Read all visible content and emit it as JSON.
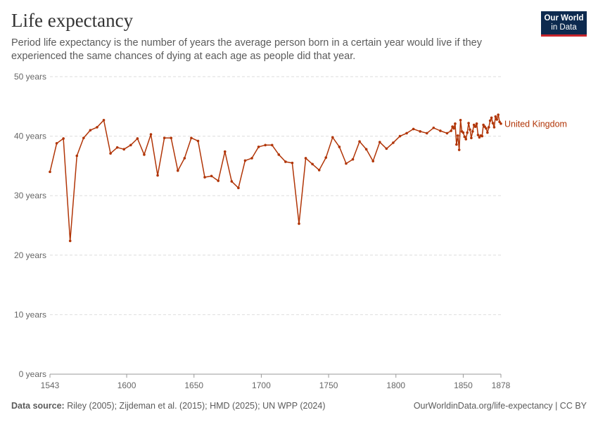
{
  "title": "Life expectancy",
  "subtitle": "Period life expectancy is the number of years the average person born in a certain year would live if they experienced the same chances of dying at each age as people did that year.",
  "logo": {
    "line1": "Our World",
    "line2": "in Data"
  },
  "footer": {
    "source_label": "Data source:",
    "source_text": "Riley (2005); Zijdeman et al. (2015); HMD (2025); UN WPP (2024)",
    "license": "OurWorldinData.org/life-expectancy | CC BY"
  },
  "colors": {
    "series": "#b13507",
    "grid": "#dddddd",
    "axis": "#999999"
  },
  "chart_data": {
    "type": "line",
    "title": "Life expectancy",
    "xlabel": "",
    "ylabel": "",
    "xlim": [
      1543,
      1878
    ],
    "ylim": [
      0,
      50
    ],
    "y_ticks": [
      {
        "value": 0,
        "label": "0 years"
      },
      {
        "value": 10,
        "label": "10 years"
      },
      {
        "value": 20,
        "label": "20 years"
      },
      {
        "value": 30,
        "label": "30 years"
      },
      {
        "value": 40,
        "label": "40 years"
      },
      {
        "value": 50,
        "label": "50 years"
      }
    ],
    "x_ticks": [
      {
        "value": 1543,
        "label": "1543"
      },
      {
        "value": 1600,
        "label": "1600"
      },
      {
        "value": 1650,
        "label": "1650"
      },
      {
        "value": 1700,
        "label": "1700"
      },
      {
        "value": 1750,
        "label": "1750"
      },
      {
        "value": 1800,
        "label": "1800"
      },
      {
        "value": 1850,
        "label": "1850"
      },
      {
        "value": 1878,
        "label": "1878"
      }
    ],
    "grid": true,
    "series": [
      {
        "name": "United Kingdom",
        "x": [
          1543,
          1548,
          1553,
          1558,
          1563,
          1568,
          1573,
          1578,
          1583,
          1588,
          1593,
          1598,
          1603,
          1608,
          1613,
          1618,
          1623,
          1628,
          1633,
          1638,
          1643,
          1648,
          1653,
          1658,
          1663,
          1668,
          1673,
          1678,
          1683,
          1688,
          1693,
          1698,
          1703,
          1708,
          1713,
          1718,
          1723,
          1728,
          1733,
          1738,
          1743,
          1748,
          1753,
          1758,
          1763,
          1768,
          1773,
          1778,
          1783,
          1788,
          1793,
          1798,
          1803,
          1808,
          1813,
          1818,
          1823,
          1828,
          1833,
          1838,
          1841,
          1842,
          1843,
          1844,
          1845,
          1846,
          1847,
          1848,
          1849,
          1850,
          1851,
          1852,
          1853,
          1854,
          1855,
          1856,
          1857,
          1858,
          1859,
          1860,
          1861,
          1862,
          1863,
          1864,
          1865,
          1866,
          1867,
          1868,
          1869,
          1870,
          1871,
          1872,
          1873,
          1874,
          1875,
          1876,
          1877,
          1878
        ],
        "values": [
          34.0,
          38.8,
          39.6,
          22.4,
          36.7,
          39.7,
          41.0,
          41.5,
          42.7,
          37.1,
          38.1,
          37.8,
          38.5,
          39.6,
          36.9,
          40.3,
          33.4,
          39.7,
          39.7,
          34.2,
          36.3,
          39.7,
          39.2,
          33.1,
          33.3,
          32.5,
          37.4,
          32.4,
          31.3,
          35.9,
          36.3,
          38.2,
          38.5,
          38.5,
          36.9,
          35.7,
          35.5,
          25.3,
          36.3,
          35.3,
          34.3,
          36.4,
          39.8,
          38.2,
          35.4,
          36.1,
          39.1,
          37.8,
          35.8,
          39.0,
          37.9,
          38.9,
          40.0,
          40.5,
          41.2,
          40.8,
          40.5,
          41.4,
          40.9,
          40.5,
          40.9,
          41.6,
          41.3,
          42.1,
          38.6,
          40.1,
          37.7,
          42.7,
          40.8,
          40.6,
          39.9,
          39.5,
          40.6,
          42.2,
          41.1,
          39.7,
          40.8,
          41.9,
          41.6,
          42.1,
          40.2,
          39.8,
          40.1,
          40.0,
          41.9,
          41.6,
          41.3,
          40.6,
          41.5,
          42.6,
          43.1,
          42.2,
          41.5,
          43.3,
          42.8,
          43.6,
          42.4,
          42.1
        ]
      }
    ]
  }
}
